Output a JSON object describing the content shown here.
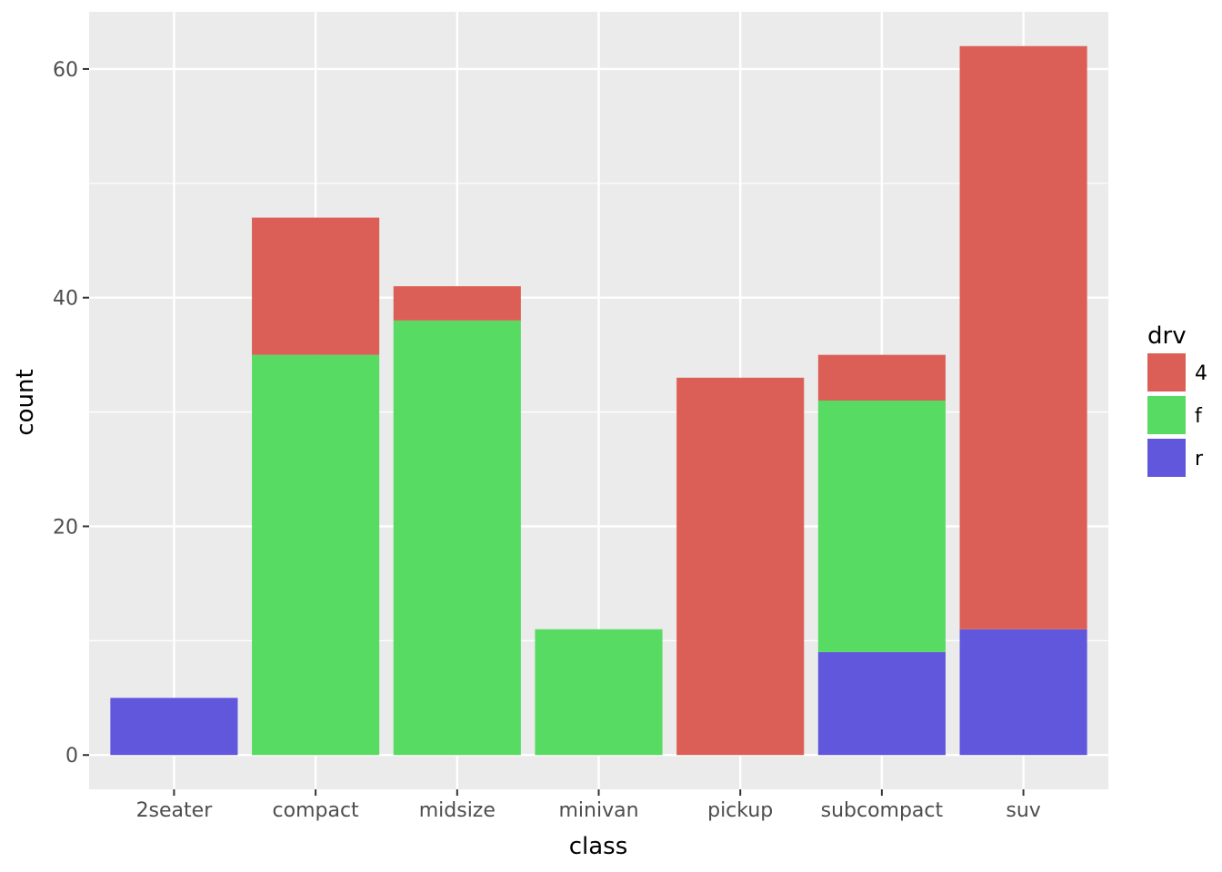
{
  "chart_data": {
    "type": "bar",
    "stacked": true,
    "categories": [
      "2seater",
      "compact",
      "midsize",
      "minivan",
      "pickup",
      "subcompact",
      "suv"
    ],
    "series": [
      {
        "name": "4",
        "color": "#dc5f57",
        "values": [
          0,
          12,
          3,
          0,
          33,
          4,
          51
        ]
      },
      {
        "name": "f",
        "color": "#58db62",
        "values": [
          0,
          35,
          38,
          11,
          0,
          22,
          0
        ]
      },
      {
        "name": "r",
        "color": "#6157dc",
        "values": [
          5,
          0,
          0,
          0,
          0,
          9,
          11
        ]
      }
    ],
    "stack_order_bottom_to_top": [
      "r",
      "f",
      "4"
    ],
    "xlabel": "class",
    "ylabel": "count",
    "ylim": [
      -3,
      65
    ],
    "yticks": [
      0,
      20,
      40,
      60
    ],
    "grid": true,
    "legend": {
      "title": "drv",
      "placement": "right"
    },
    "panel_background": "#ebebeb",
    "gridline_color": "#ffffff"
  }
}
